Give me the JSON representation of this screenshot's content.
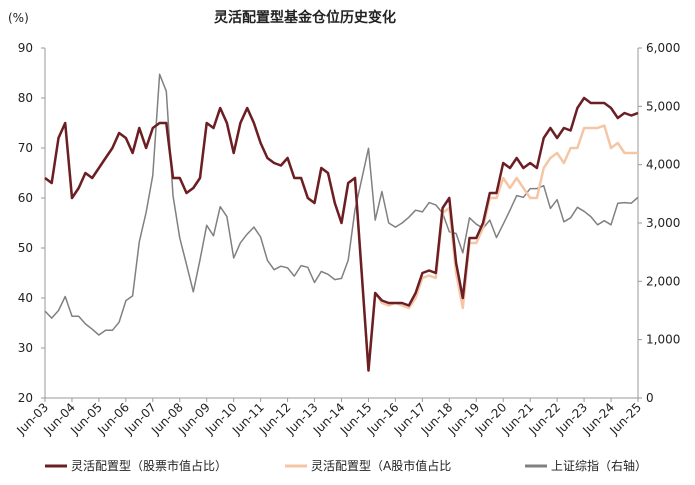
{
  "chart_data": {
    "type": "line",
    "title": "灵活配置型基金仓位历史变化",
    "y_label": "(%)",
    "categories": [
      "Jun-03",
      null,
      null,
      null,
      "Jun-04",
      null,
      null,
      null,
      "Jun-05",
      null,
      null,
      null,
      "Jun-06",
      null,
      null,
      null,
      "Jun-07",
      null,
      null,
      null,
      "Jun-08",
      null,
      null,
      null,
      "Jun-09",
      null,
      null,
      null,
      "Jun-10",
      null,
      null,
      null,
      "Jun-11",
      null,
      null,
      null,
      "Jun-12",
      null,
      null,
      null,
      "Jun-13",
      null,
      null,
      null,
      "Jun-14",
      null,
      null,
      null,
      "Jun-15",
      null,
      null,
      null,
      "Jun-16",
      null,
      null,
      null,
      "Jun-17",
      null,
      null,
      null,
      "Jun-18",
      null,
      null,
      null,
      "Jun-19",
      null,
      null,
      null,
      "Jun-20",
      null,
      null,
      null,
      "Jun-21",
      null,
      null,
      null,
      "Jun-22",
      null,
      null,
      null,
      "Jun-23",
      null,
      null,
      null,
      "Jun-24",
      null,
      null,
      null,
      "Jun-25"
    ],
    "ylim": [
      20,
      90
    ],
    "yticks": [
      20,
      30,
      40,
      50,
      60,
      70,
      80,
      90
    ],
    "y2lim": [
      0,
      6000
    ],
    "y2ticks": [
      0,
      {
        "value": 1000,
        "label": "1,000"
      },
      {
        "value": 2000,
        "label": "2,000"
      },
      {
        "value": 3000,
        "label": "3,000"
      },
      {
        "value": 4000,
        "label": "4,000"
      },
      {
        "value": 5000,
        "label": "5,000"
      },
      {
        "value": 6000,
        "label": "6,000"
      }
    ],
    "grid": false,
    "legend": "bottom",
    "series": [
      {
        "name": "灵活配置型（股票市值占比）",
        "color": "#6b1f25",
        "width": 2.5,
        "values": [
          64,
          63,
          72,
          75,
          60,
          62,
          65,
          64,
          66,
          68,
          70,
          73,
          72,
          69,
          74,
          70,
          74,
          75,
          75,
          64,
          64,
          61,
          62,
          64,
          75,
          74,
          78,
          75,
          69,
          75,
          78,
          75,
          71,
          68,
          67,
          66.5,
          68,
          64,
          64,
          60,
          59,
          66,
          65,
          59,
          55,
          63,
          64,
          45,
          25.5,
          41,
          39.5,
          39,
          39,
          39,
          38.5,
          41,
          45,
          45.5,
          45,
          58,
          60,
          47,
          40,
          52,
          52,
          55,
          61,
          61,
          67,
          66,
          68,
          66,
          67,
          66,
          72,
          74,
          72,
          74,
          73.5,
          78,
          80,
          79,
          79,
          79,
          78,
          76,
          77,
          76.5,
          77
        ]
      },
      {
        "name": "灵活配置型（A股市值占比",
        "color": "#f5c6a5",
        "width": 2.5,
        "values": [
          64,
          63,
          72,
          75,
          60,
          62,
          65,
          64,
          66,
          68,
          70,
          73,
          72,
          69,
          74,
          70,
          74,
          75,
          75,
          64,
          64,
          61,
          62,
          64,
          75,
          74,
          78,
          75,
          69,
          75,
          78,
          75,
          71,
          68,
          67,
          66.5,
          68,
          64,
          64,
          60,
          59,
          66,
          65,
          59,
          55,
          63,
          64,
          45,
          25.5,
          41,
          39,
          38.5,
          39,
          38.5,
          38,
          40,
          44,
          44.5,
          44,
          57,
          58,
          45,
          38,
          51,
          51,
          54,
          60,
          60,
          64,
          62,
          64,
          62,
          60,
          60,
          66,
          68,
          69,
          67,
          70,
          70,
          74,
          74,
          74,
          74.5,
          70,
          71,
          69,
          69,
          69
        ]
      },
      {
        "name": "上证综指（右轴）",
        "color": "#808080",
        "width": 1.5,
        "axis": "y2",
        "values": [
          1490,
          1370,
          1500,
          1740,
          1400,
          1400,
          1270,
          1180,
          1080,
          1160,
          1160,
          1300,
          1670,
          1750,
          2680,
          3180,
          3820,
          5550,
          5260,
          3470,
          2740,
          2290,
          1820,
          2370,
          2960,
          2780,
          3280,
          3110,
          2400,
          2660,
          2810,
          2930,
          2760,
          2360,
          2200,
          2260,
          2230,
          2090,
          2270,
          2240,
          1980,
          2170,
          2120,
          2030,
          2050,
          2360,
          3230,
          3750,
          4280,
          3050,
          3540,
          3000,
          2930,
          3000,
          3100,
          3220,
          3190,
          3350,
          3310,
          3170,
          2850,
          2820,
          2490,
          3090,
          2980,
          2910,
          3050,
          2750,
          2980,
          3220,
          3470,
          3440,
          3590,
          3590,
          3640,
          3250,
          3400,
          3020,
          3090,
          3270,
          3200,
          3110,
          2970,
          3040,
          2970,
          3340,
          3350,
          3340,
          3440
        ]
      }
    ]
  }
}
